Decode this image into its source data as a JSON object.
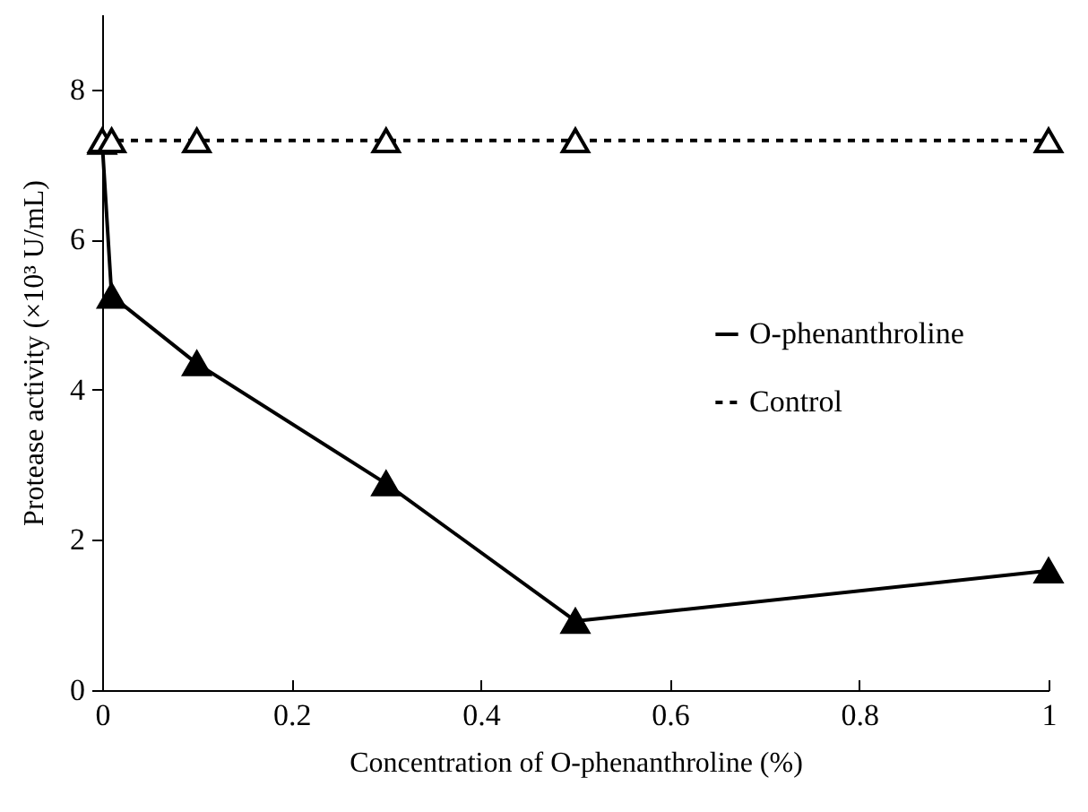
{
  "chart_data": {
    "type": "line",
    "xlabel": "Concentration of O-phenanthroline (%)",
    "ylabel": "Protease activity (×10³ U/mL)",
    "x": [
      0,
      0.01,
      0.1,
      0.3,
      0.5,
      1
    ],
    "series": [
      {
        "name": "O-phenanthroline",
        "color": "#000000",
        "line_style": "solid",
        "values": [
          7.3,
          5.25,
          4.35,
          2.75,
          0.92,
          1.59
        ]
      },
      {
        "name": "Control",
        "color": "#000000",
        "line_style": "dashed",
        "values": [
          7.32,
          7.32,
          7.32,
          7.32,
          7.32,
          7.32
        ]
      }
    ],
    "marker": "triangle",
    "xlim": [
      0,
      1
    ],
    "xticks": [
      0,
      0.2,
      0.4,
      0.6,
      0.8,
      1
    ],
    "ylim": [
      0,
      9
    ],
    "yticks": [
      0,
      2,
      4,
      6,
      8
    ],
    "grid": false,
    "legend": "right"
  }
}
